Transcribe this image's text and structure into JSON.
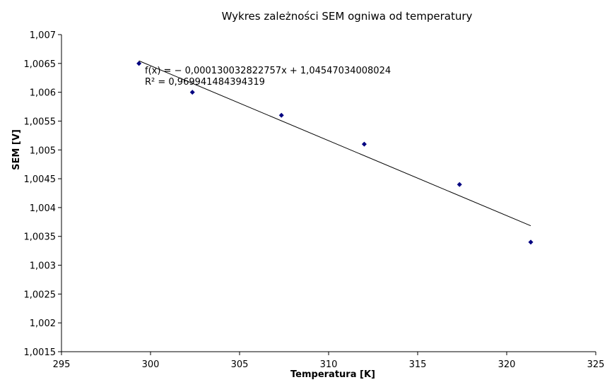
{
  "chart_data": {
    "type": "scatter",
    "title": "Wykres zależności SEM ogniwa od temperatury",
    "xlabel": "Temperatura [K]",
    "ylabel": "SEM [V]",
    "xlim": [
      295,
      325
    ],
    "ylim": [
      1.0015,
      1.007
    ],
    "x_ticks": [
      295,
      300,
      305,
      310,
      315,
      320,
      325
    ],
    "x_tick_labels": [
      "295",
      "300",
      "305",
      "310",
      "315",
      "320",
      "325"
    ],
    "y_ticks": [
      1.0015,
      1.002,
      1.0025,
      1.003,
      1.0035,
      1.004,
      1.0045,
      1.005,
      1.0055,
      1.006,
      1.0065,
      1.007
    ],
    "y_tick_labels": [
      "1,0015",
      "1,002",
      "1,0025",
      "1,003",
      "1,0035",
      "1,004",
      "1,0045",
      "1,005",
      "1,0055",
      "1,006",
      "1,0065",
      "1,007"
    ],
    "grid": false,
    "series": [
      {
        "marker_color": "#000080",
        "x": [
          299.35,
          302.35,
          307.35,
          312.0,
          317.35,
          321.35
        ],
        "y": [
          1.0065,
          1.006,
          1.0056,
          1.0051,
          1.0044,
          1.0034
        ]
      }
    ],
    "trendline": {
      "slope": -0.000130032822757,
      "intercept": 1.04547034008024,
      "x_range": [
        299.35,
        321.35
      ],
      "color": "#000000",
      "equation_text": "f(x) = − 0,000130032822757x + 1,04547034008024",
      "r2_text": "R² = 0,969941484394319"
    }
  }
}
